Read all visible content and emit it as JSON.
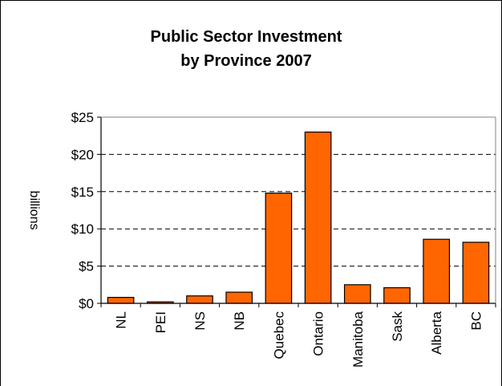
{
  "chart_data": {
    "type": "bar",
    "title_lines": [
      "Public Sector Investment",
      "by Province 2007"
    ],
    "ylabel": "billions",
    "xlabel": "",
    "categories": [
      "NL",
      "PEI",
      "NS",
      "NB",
      "Quebec",
      "Ontario",
      "Manitoba",
      "Sask",
      "Alberta",
      "BC"
    ],
    "values": [
      0.8,
      0.2,
      1.0,
      1.5,
      14.8,
      23.0,
      2.5,
      2.1,
      8.6,
      8.2
    ],
    "ylim": [
      0,
      25
    ],
    "y_ticks": [
      0,
      5,
      10,
      15,
      20,
      25
    ],
    "y_tick_labels": [
      "$0",
      "$5",
      "$10",
      "$15",
      "$20",
      "$25"
    ],
    "grid": "horizontal dashed",
    "legend": "none",
    "bar_color": "#FF6600"
  }
}
